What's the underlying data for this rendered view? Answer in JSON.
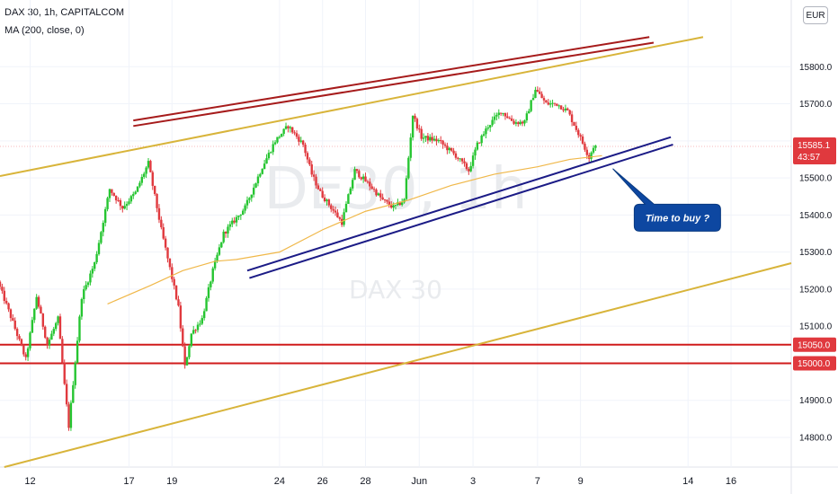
{
  "header": {
    "title": "DAX 30, 1h, CAPITALCOM",
    "indicator": "MA (200, close, 0)",
    "currency": "EUR"
  },
  "colors": {
    "up": "#26c531",
    "down": "#e0393e",
    "ma": "#f0b84a",
    "trend_yellow": "#d8b43a",
    "trend_red": "#a61b1b",
    "channel_blue": "#1b1b86",
    "hline_red": "#d01b1b",
    "tag_red": "#e0393e",
    "note_blue": "#0d47a1"
  },
  "chart_data": {
    "type": "candlestick",
    "title": "DAX 30, 1h, CAPITALCOM",
    "ylim": [
      14720,
      15980
    ],
    "yticks": [
      14800,
      14900,
      15000,
      15100,
      15200,
      15300,
      15400,
      15500,
      15600,
      15700,
      15800
    ],
    "ytick_labels": [
      "14800.0",
      "14900.0",
      "15000.0",
      "15100.0",
      "15200.0",
      "15300.0",
      "15400.0",
      "15500.0",
      "15600.0",
      "15700.0",
      "15800.0"
    ],
    "xtick_labels": [
      "12",
      "17",
      "19",
      "24",
      "26",
      "28",
      "Jun",
      "3",
      "7",
      "9",
      "14",
      "16"
    ],
    "xtick_positions": [
      0.4,
      5,
      7,
      12,
      14,
      16,
      18.5,
      21,
      24,
      26,
      31,
      33
    ],
    "xlim": [
      -1.0,
      35.8
    ],
    "current_price": "15585.1",
    "countdown": "43:57",
    "moving_average": {
      "name": "MA (200, close, 0)",
      "x": [
        4,
        6,
        7.5,
        9,
        10,
        12,
        14,
        16,
        18,
        20,
        22,
        24,
        25.5,
        27
      ],
      "y": [
        15160,
        15210,
        15250,
        15275,
        15280,
        15300,
        15360,
        15410,
        15440,
        15480,
        15510,
        15530,
        15550,
        15560
      ]
    },
    "horizontal_levels": [
      {
        "price": 15050,
        "label": "15050.0"
      },
      {
        "price": 15000,
        "label": "15000.0"
      }
    ],
    "trendlines": [
      {
        "color": "trend_yellow",
        "x": [
          -1.0,
          31.7
        ],
        "y": [
          15505,
          15880
        ]
      },
      {
        "color": "trend_yellow",
        "x": [
          -0.8,
          35.8
        ],
        "y": [
          14720,
          15270
        ]
      },
      {
        "color": "trend_red",
        "x": [
          5.2,
          29.2
        ],
        "y": [
          15655,
          15880
        ]
      },
      {
        "color": "trend_red",
        "x": [
          5.2,
          29.4
        ],
        "y": [
          15640,
          15865
        ]
      },
      {
        "color": "channel_blue",
        "x": [
          10.5,
          30.2
        ],
        "y": [
          15250,
          15610
        ]
      },
      {
        "color": "channel_blue",
        "x": [
          10.6,
          30.3
        ],
        "y": [
          15230,
          15590
        ]
      }
    ],
    "annotation": {
      "text": "Time to buy ?",
      "x": 29.0,
      "y": 15395
    },
    "ohlc_keypoints": {
      "x": [
        -1.0,
        -0.3,
        0.3,
        0.8,
        1.3,
        1.8,
        2.1,
        2.3,
        2.9,
        3.5,
        4.2,
        4.8,
        5.4,
        6.0,
        6.6,
        7.1,
        7.4,
        7.7,
        8.0,
        8.5,
        9.0,
        9.5,
        10.5,
        11.3,
        11.9,
        12.5,
        13.2,
        13.6,
        14.0,
        14.5,
        15.0,
        15.6,
        16.3,
        16.9,
        17.4,
        17.9,
        18.3,
        18.7,
        19.5,
        20.3,
        20.9,
        21.3,
        21.8,
        22.4,
        23.0,
        23.5,
        24.0,
        24.5,
        25.0,
        25.5,
        26.0,
        26.5,
        26.7
      ],
      "y": [
        15220,
        15110,
        15010,
        15180,
        15050,
        15120,
        14940,
        14830,
        15180,
        15270,
        15470,
        15420,
        15460,
        15540,
        15360,
        15230,
        15150,
        14990,
        15080,
        15120,
        15250,
        15350,
        15420,
        15530,
        15600,
        15640,
        15590,
        15510,
        15460,
        15420,
        15380,
        15520,
        15480,
        15440,
        15420,
        15440,
        15670,
        15610,
        15600,
        15560,
        15520,
        15590,
        15640,
        15680,
        15650,
        15650,
        15740,
        15700,
        15700,
        15680,
        15620,
        15555,
        15585
      ]
    }
  }
}
